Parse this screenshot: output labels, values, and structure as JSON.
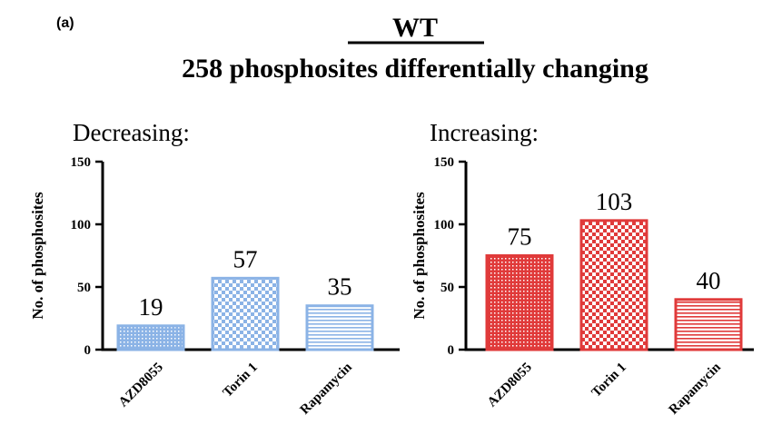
{
  "figure": {
    "panel_label": "(a)",
    "title_line1": "WT",
    "title_line2": "258 phosphosites differentially changing"
  },
  "colors": {
    "blue": "#8bb3e6",
    "red": "#e03a3a",
    "axis": "#000000"
  },
  "chart_data": [
    {
      "type": "bar",
      "title": "Decreasing:",
      "ylabel": "No. of phosphosites",
      "categories": [
        "AZD8055",
        "Torin 1",
        "Rapamycin"
      ],
      "values": [
        19,
        57,
        35
      ],
      "ylim": [
        0,
        150
      ],
      "yticks": [
        0,
        50,
        100,
        150
      ],
      "patterns": [
        "dots",
        "checker",
        "hlines"
      ],
      "color_key": "blue"
    },
    {
      "type": "bar",
      "title": "Increasing:",
      "ylabel": "No. of phosphosites",
      "categories": [
        "AZD8055",
        "Torin 1",
        "Rapamycin"
      ],
      "values": [
        75,
        103,
        40
      ],
      "ylim": [
        0,
        150
      ],
      "yticks": [
        0,
        50,
        100,
        150
      ],
      "patterns": [
        "dots",
        "checker",
        "hlines"
      ],
      "color_key": "red"
    }
  ]
}
